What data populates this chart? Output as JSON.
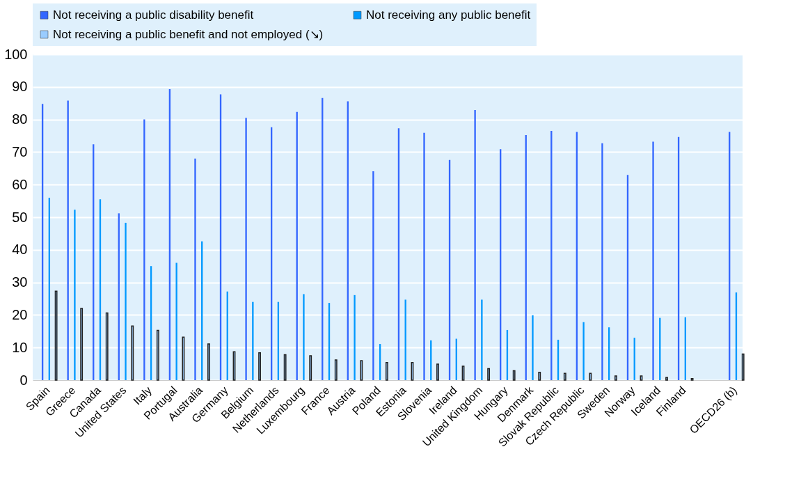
{
  "chart_data": {
    "type": "bar",
    "categories": [
      "Spain",
      "Greece",
      "Canada",
      "United States",
      "Italy",
      "Portugal",
      "Australia",
      "Germany",
      "Belgium",
      "Netherlands",
      "Luxembourg",
      "France",
      "Austria",
      "Poland",
      "Estonia",
      "Slovenia",
      "Ireland",
      "United Kingdom",
      "Hungary",
      "Denmark",
      "Slovak Republic",
      "Czech Republic",
      "Sweden",
      "Norway",
      "Iceland",
      "Finland",
      null,
      "OECD26 (b)"
    ],
    "series": [
      {
        "name": "Not receiving a public disability benefit",
        "color": "#3366ff",
        "values": [
          84.8,
          85.8,
          72.4,
          51.2,
          80.0,
          89.3,
          68.0,
          87.7,
          80.5,
          77.6,
          82.3,
          86.6,
          85.6,
          64.1,
          77.3,
          75.9,
          67.6,
          82.9,
          70.9,
          75.2,
          76.5,
          76.2,
          72.7,
          63.0,
          73.2,
          74.6,
          null,
          76.2
        ]
      },
      {
        "name": "Not receiving any public benefit",
        "color": "#0099ff",
        "values": [
          56.0,
          52.3,
          55.5,
          48.3,
          35.0,
          36.0,
          42.6,
          27.2,
          24.0,
          24.0,
          26.4,
          23.7,
          26.1,
          11.1,
          24.7,
          12.2,
          12.7,
          24.7,
          15.4,
          19.9,
          12.4,
          17.8,
          16.2,
          13.0,
          19.1,
          19.3,
          null,
          26.9
        ]
      },
      {
        "name": "Not receiving a public benefit and not employed (↘)",
        "color": "#99ccff",
        "values": [
          27.3,
          22.0,
          20.6,
          16.6,
          15.3,
          13.2,
          11.1,
          8.7,
          8.4,
          7.8,
          7.5,
          6.2,
          6.0,
          5.4,
          5.4,
          4.9,
          4.3,
          3.5,
          2.9,
          2.4,
          2.1,
          2.1,
          1.3,
          1.3,
          0.8,
          0.5,
          null,
          8.0
        ]
      }
    ],
    "ylim": [
      0,
      100
    ],
    "yticks": [
      0,
      10,
      20,
      30,
      40,
      50,
      60,
      70,
      80,
      90,
      100
    ],
    "grid": "y",
    "legend": "top"
  }
}
